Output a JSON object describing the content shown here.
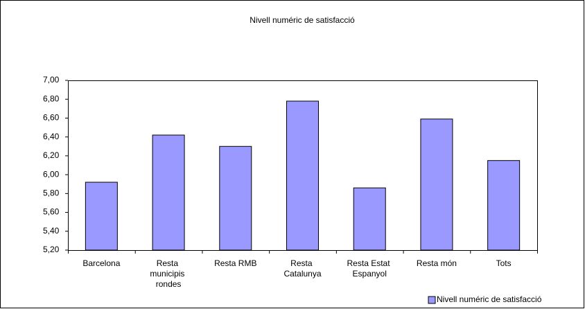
{
  "chart_data": {
    "type": "bar",
    "title": "Nivell numéric de satisfacció",
    "categories": [
      "Barcelona",
      "Resta municipis rondes",
      "Resta RMB",
      "Resta Catalunya",
      "Resta Estat Espanyol",
      "Resta món",
      "Tots"
    ],
    "series": [
      {
        "name": "Nivell numéric de satisfacció",
        "color": "#9999ff",
        "values": [
          5.92,
          6.42,
          6.3,
          6.78,
          5.86,
          6.59,
          6.15
        ]
      }
    ],
    "ylim": [
      5.2,
      7.0
    ],
    "yticks": [
      {
        "value": 5.2,
        "label": "5,20"
      },
      {
        "value": 5.4,
        "label": "5,40"
      },
      {
        "value": 5.6,
        "label": "5,60"
      },
      {
        "value": 5.8,
        "label": "5,80"
      },
      {
        "value": 6.0,
        "label": "6,00"
      },
      {
        "value": 6.2,
        "label": "6,20"
      },
      {
        "value": 6.4,
        "label": "6,40"
      },
      {
        "value": 6.6,
        "label": "6,60"
      },
      {
        "value": 6.8,
        "label": "6,80"
      },
      {
        "value": 7.0,
        "label": "7,00"
      }
    ],
    "grid": false,
    "legend": "bottom-right"
  }
}
